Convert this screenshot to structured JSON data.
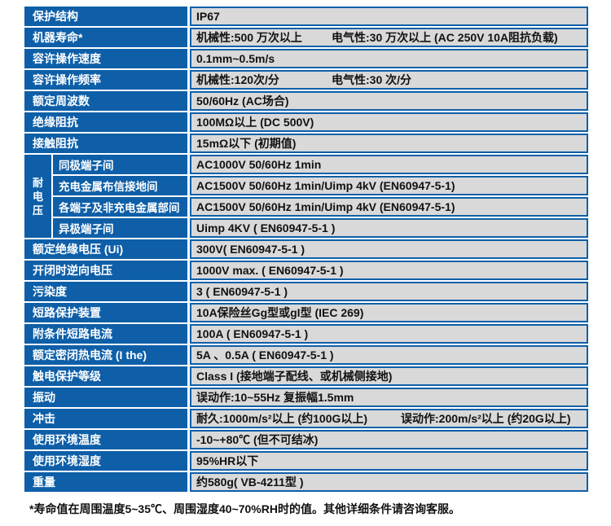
{
  "colors": {
    "header_blue": "#0e5fa8",
    "cell_gray": "#d9d9d9",
    "border_blue": "#0e5fa8",
    "text_dark": "#111111",
    "text_white": "#ffffff"
  },
  "table": {
    "rows_top": [
      {
        "label": "保护结构",
        "value": "IP67"
      },
      {
        "label": "机器寿命*",
        "value_parts": [
          "机械性:500 万次以上",
          "电气性:30 万次以上 (AC 250V 10A阻抗负载)"
        ]
      },
      {
        "label": "容许操作速度",
        "value": "0.1mm~0.5m/s"
      },
      {
        "label": "容许操作频率",
        "value_parts": [
          "机械性:120次/分",
          "电气性:30 次/分"
        ]
      },
      {
        "label": "额定周波数",
        "value": "50/60Hz (AC场合)"
      },
      {
        "label": "绝缘阻抗",
        "value": "100MΩ以上 (DC 500V)"
      },
      {
        "label": "接触阻抗",
        "value": "15mΩ以下 (初期值)"
      }
    ],
    "group": {
      "label": "耐电压",
      "rows": [
        {
          "label": "同极端子间",
          "value": "AC1000V 50/60Hz 1min"
        },
        {
          "label": "充电金属布信接地间",
          "value": "AC1500V 50/60Hz 1min/Uimp 4kV (EN60947-5-1)"
        },
        {
          "label": "各端子及非充电金属部间",
          "value": "AC1500V 50/60Hz 1min/Uimp 4kV (EN60947-5-1)"
        },
        {
          "label": "异极端子间",
          "value": "Uimp 4KV ( EN60947-5-1 )"
        }
      ]
    },
    "rows_bottom": [
      {
        "label": "额定绝缘电压 (Ui)",
        "value": "300V( EN60947-5-1 )"
      },
      {
        "label": "开闭时逆向电压",
        "value": "1000V max. ( EN60947-5-1 )"
      },
      {
        "label": "污染度",
        "value": "3 ( EN60947-5-1 )"
      },
      {
        "label": "短路保护装置",
        "value": "10A保险丝Gg型或gI型 (IEC 269)"
      },
      {
        "label": "附条件短路电流",
        "value": "100A ( EN60947-5-1 )"
      },
      {
        "label": "额定密闭热电流 (I the)",
        "value": "5A 、0.5A ( EN60947-5-1 )"
      },
      {
        "label": "触电保护等级",
        "value": "Class I (接地端子配线、或机械侧接地)"
      },
      {
        "label": "振动",
        "value": "误动作:10~55Hz 复振幅1.5mm"
      },
      {
        "label": "冲击",
        "value_parts": [
          "耐久:1000m/s²以上 (约100G以上)",
          "误动作:200m/s²以上 (约20G以上)"
        ]
      },
      {
        "label": "使用环境温度",
        "value": "-10~+80℃ (但不可结冰)"
      },
      {
        "label": "使用环境湿度",
        "value": "95%HR以下"
      },
      {
        "label": "重量",
        "value": "约580g( VB-4211型 )"
      }
    ]
  },
  "footnote": "*寿命值在周围温度5~35℃、周围湿度40~70%RH时的值。其他详细条件请咨询客服。"
}
